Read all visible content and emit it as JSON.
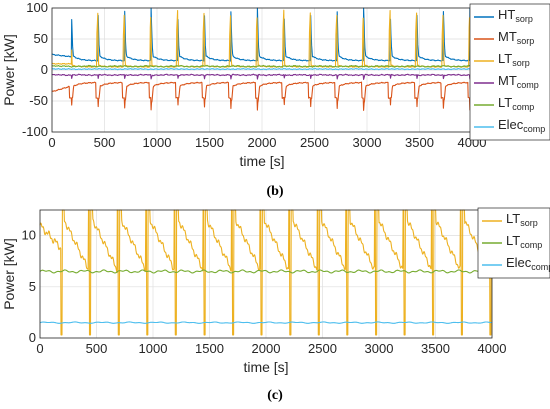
{
  "chart_data": [
    {
      "type": "line",
      "caption": "(b)",
      "xlabel": "time [s]",
      "ylabel": "Power [kW]",
      "xlim": [
        0,
        4000
      ],
      "ylim": [
        -100,
        100
      ],
      "xticks": [
        "0",
        "500",
        "1000",
        "1500",
        "2000",
        "2500",
        "3000",
        "3500",
        "4000"
      ],
      "yticks": [
        "-100",
        "-50",
        "0",
        "50",
        "100"
      ],
      "grid": true,
      "legend_position": "right",
      "cycle_period": 253,
      "cycle_start": 185,
      "series": [
        {
          "name": "HT",
          "sub": "sorp",
          "color": "#0072BD",
          "base": 18,
          "spike": 100
        },
        {
          "name": "MT",
          "sub": "sorp",
          "color": "#D95319",
          "base": -22,
          "dip": -65
        },
        {
          "name": "LT",
          "sub": "sorp",
          "color": "#EDB120",
          "base": 5,
          "spike": 100
        },
        {
          "name": "MT",
          "sub": "comp",
          "color": "#7E2F8E",
          "base": -8
        },
        {
          "name": "LT",
          "sub": "comp",
          "color": "#77AC30",
          "base": 6
        },
        {
          "name": "Elec",
          "sub": "comp",
          "color": "#4DBEEE",
          "base": 1.5
        }
      ]
    },
    {
      "type": "line",
      "caption": "(c)",
      "xlabel": "time [s]",
      "ylabel": "Power [kW]",
      "xlim": [
        0,
        4000
      ],
      "ylim": [
        0,
        12.5
      ],
      "xticks": [
        "0",
        "500",
        "1000",
        "1500",
        "2000",
        "2500",
        "3000",
        "3500",
        "4000"
      ],
      "yticks": [
        "0",
        "5",
        "10"
      ],
      "grid": true,
      "legend_position": "top-right",
      "cycle_period": 253,
      "cycle_start": 185,
      "series": [
        {
          "name": "LT",
          "sub": "sorp",
          "color": "#EDB120",
          "high": 11.5,
          "low": 6.5
        },
        {
          "name": "LT",
          "sub": "comp",
          "color": "#77AC30",
          "base": 6.5
        },
        {
          "name": "Elec",
          "sub": "comp",
          "color": "#4DBEEE",
          "base": 1.5
        }
      ]
    }
  ]
}
